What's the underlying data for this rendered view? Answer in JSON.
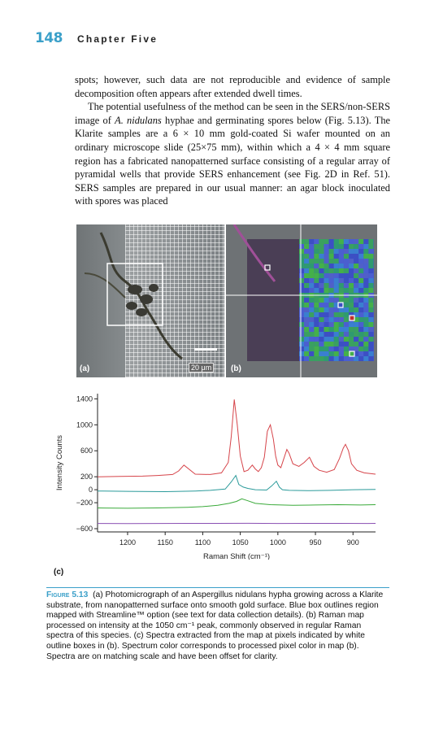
{
  "header": {
    "page_number": "148",
    "chapter": "Chapter Five"
  },
  "body": {
    "p1": "spots; however, such data are not reproducible and evidence of sample decomposition often appears after extended dwell times.",
    "p2_a": "The potential usefulness of the method can be seen in the SERS/non-SERS image of ",
    "p2_species": "A. nidulans",
    "p2_b": " hyphae and germinating spores below (Fig. 5.13). The Klarite samples are a 6 × 10 mm gold-coated Si wafer mounted on an ordinary microscope slide (25×75 mm), within which a 4 × 4 mm square region has a fabricated nanopatterned surface consisting of a regular array of pyramidal wells that provide SERS enhancement (see Fig. 2D in Ref. 51). SERS samples are prepared in our usual manner: an agar block inoculated with spores was placed"
  },
  "figure": {
    "label_a": "(a)",
    "label_b": "(b)",
    "label_c": "(c)",
    "scale_bar": "20 μm"
  },
  "chart_data": {
    "type": "line",
    "xlabel": "Raman Shift (cm⁻¹)",
    "ylabel": "Intensity Counts",
    "x_reversed": true,
    "xlim": [
      1240,
      870
    ],
    "ylim": [
      -650,
      1480
    ],
    "x_ticks": [
      1200,
      1150,
      1100,
      1050,
      1000,
      950,
      900
    ],
    "y_ticks": [
      1400,
      1000,
      600,
      200,
      0,
      -200,
      -600
    ],
    "y_tick_labels": [
      "1400",
      "1000",
      "600",
      "200",
      "0",
      "−200",
      "−600"
    ],
    "series": [
      {
        "color": "#d6444a",
        "x": [
          1240,
          1210,
          1180,
          1160,
          1140,
          1132,
          1125,
          1110,
          1090,
          1075,
          1066,
          1062,
          1058,
          1054,
          1050,
          1045,
          1040,
          1034,
          1030,
          1026,
          1022,
          1018,
          1014,
          1010,
          1006,
          1003,
          1000,
          996,
          992,
          988,
          985,
          980,
          972,
          965,
          958,
          952,
          945,
          935,
          925,
          918,
          913,
          910,
          906,
          902,
          895,
          885,
          870
        ],
        "y": [
          200,
          205,
          210,
          220,
          235,
          290,
          380,
          240,
          235,
          260,
          420,
          820,
          1390,
          1000,
          520,
          280,
          300,
          380,
          320,
          280,
          340,
          500,
          900,
          1000,
          780,
          520,
          380,
          340,
          480,
          620,
          560,
          400,
          360,
          420,
          500,
          360,
          300,
          270,
          310,
          480,
          640,
          700,
          600,
          400,
          300,
          260,
          240
        ]
      },
      {
        "color": "#2a9a9a",
        "x": [
          1240,
          1200,
          1150,
          1110,
          1090,
          1070,
          1062,
          1056,
          1052,
          1046,
          1040,
          1030,
          1015,
          1008,
          1002,
          998,
          994,
          985,
          960,
          930,
          900,
          870
        ],
        "y": [
          -20,
          -25,
          -30,
          -20,
          -10,
          10,
          120,
          220,
          80,
          40,
          20,
          0,
          -5,
          60,
          130,
          40,
          0,
          -10,
          -15,
          -10,
          0,
          5
        ]
      },
      {
        "color": "#3aaa3a",
        "x": [
          1240,
          1200,
          1160,
          1120,
          1100,
          1080,
          1065,
          1055,
          1048,
          1040,
          1030,
          1010,
          980,
          950,
          920,
          890,
          870
        ],
        "y": [
          -280,
          -285,
          -280,
          -270,
          -260,
          -240,
          -210,
          -180,
          -140,
          -170,
          -210,
          -230,
          -240,
          -235,
          -230,
          -235,
          -230
        ]
      },
      {
        "color": "#8a4fb3",
        "x": [
          1240,
          1200,
          1160,
          1120,
          1080,
          1040,
          1000,
          960,
          920,
          880,
          870
        ],
        "y": [
          -520,
          -522,
          -520,
          -518,
          -519,
          -517,
          -520,
          -519,
          -518,
          -520,
          -519
        ]
      }
    ]
  },
  "caption": {
    "figure_label": "Figure 5.13",
    "text": "(a) Photomicrograph of an Aspergillus nidulans hypha growing across a Klarite substrate, from nanopatterned surface onto smooth gold surface. Blue box outlines region mapped with Streamline™ option (see text for data collection details). (b) Raman map processed on intensity at the 1050 cm⁻¹ peak, commonly observed in regular Raman spectra of this species. (c) Spectra extracted from the map at pixels indicated by white outline boxes in (b). Spectrum color corresponds to processed pixel color in map (b). Spectra are on matching scale and have been offset for clarity."
  }
}
